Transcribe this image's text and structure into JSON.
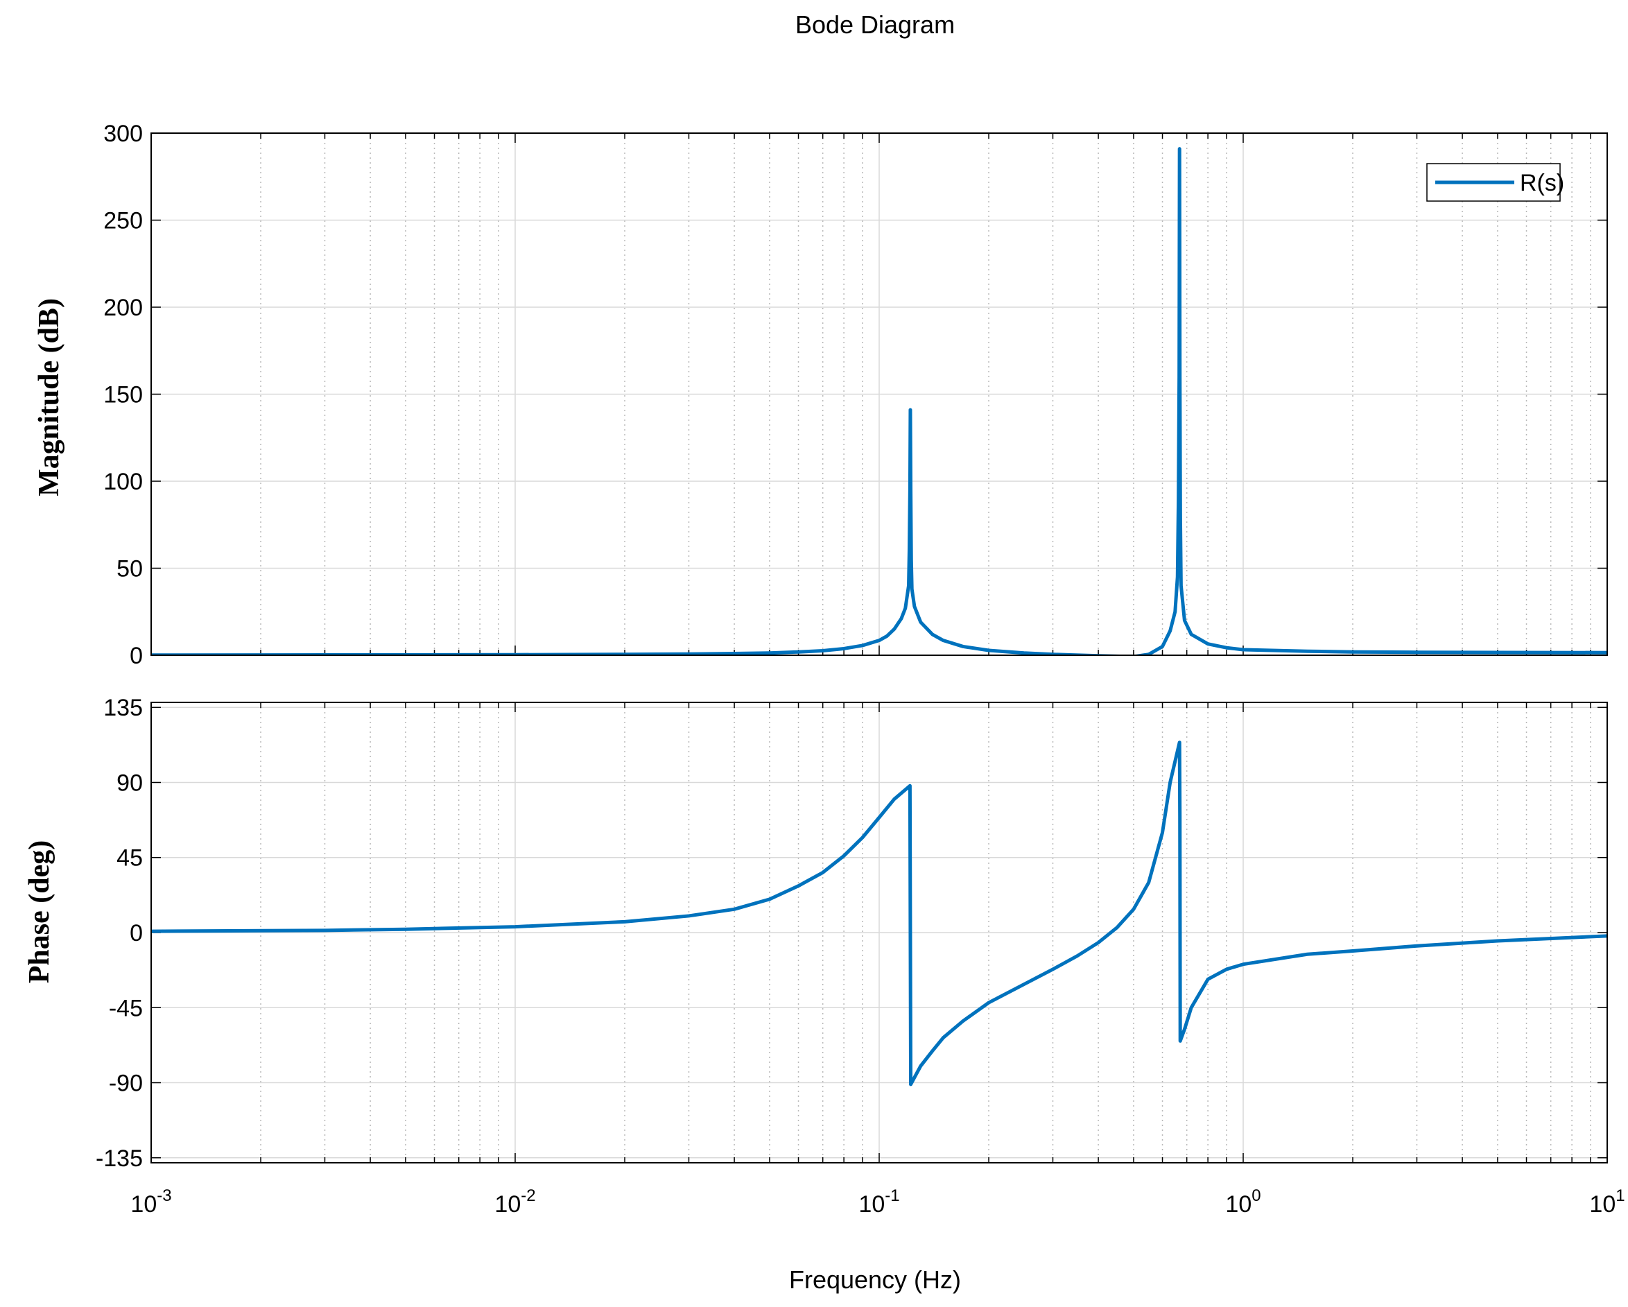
{
  "chart_data": [
    {
      "type": "line",
      "title": "Bode Diagram",
      "ylabel": "Magnitude (dB)",
      "xlabel": "",
      "xscale": "log",
      "xlim": [
        0.001,
        10
      ],
      "ylim": [
        0,
        300
      ],
      "yticks": [
        0,
        50,
        100,
        150,
        200,
        250,
        300
      ],
      "yticklabels": [
        "0",
        "50",
        "100",
        "150",
        "200",
        "250",
        "300"
      ],
      "grid": true,
      "legend": {
        "placement": "top-right",
        "entries": [
          "R(s)"
        ]
      },
      "series": [
        {
          "name": "R(s)",
          "color": "#0072BD",
          "points": [
            [
              0.001,
              0.1
            ],
            [
              0.003,
              0.2
            ],
            [
              0.01,
              0.3
            ],
            [
              0.02,
              0.5
            ],
            [
              0.03,
              0.7
            ],
            [
              0.04,
              1.0
            ],
            [
              0.05,
              1.3
            ],
            [
              0.06,
              1.9
            ],
            [
              0.07,
              2.6
            ],
            [
              0.08,
              3.8
            ],
            [
              0.09,
              5.6
            ],
            [
              0.1,
              8.5
            ],
            [
              0.105,
              11
            ],
            [
              0.11,
              15
            ],
            [
              0.115,
              21
            ],
            [
              0.118,
              27
            ],
            [
              0.1205,
              40
            ],
            [
              0.121,
              60
            ],
            [
              0.1215,
              95
            ],
            [
              0.1218,
              141
            ],
            [
              0.1221,
              95
            ],
            [
              0.1225,
              55
            ],
            [
              0.123,
              38
            ],
            [
              0.125,
              28
            ],
            [
              0.13,
              19
            ],
            [
              0.14,
              12
            ],
            [
              0.15,
              8.5
            ],
            [
              0.17,
              5.0
            ],
            [
              0.2,
              2.8
            ],
            [
              0.25,
              1.3
            ],
            [
              0.3,
              0.5
            ],
            [
              0.4,
              -0.3
            ],
            [
              0.5,
              -0.8
            ],
            [
              0.55,
              0.5
            ],
            [
              0.6,
              5
            ],
            [
              0.63,
              14
            ],
            [
              0.65,
              25
            ],
            [
              0.66,
              45
            ],
            [
              0.664,
              90
            ],
            [
              0.667,
              160
            ],
            [
              0.6685,
              291
            ],
            [
              0.67,
              160
            ],
            [
              0.672,
              80
            ],
            [
              0.675,
              40
            ],
            [
              0.69,
              20
            ],
            [
              0.72,
              12
            ],
            [
              0.8,
              6.5
            ],
            [
              0.9,
              4.3
            ],
            [
              1.0,
              3.2
            ],
            [
              1.5,
              2.3
            ],
            [
              2,
              1.9
            ],
            [
              3,
              1.7
            ],
            [
              5,
              1.6
            ],
            [
              10,
              1.5
            ]
          ]
        }
      ]
    },
    {
      "type": "line",
      "title": "",
      "ylabel": "Phase (deg)",
      "xlabel": "Frequency  (Hz)",
      "xscale": "log",
      "xlim": [
        0.001,
        10
      ],
      "ylim": [
        -138,
        138
      ],
      "xticks": [
        0.001,
        0.01,
        0.1,
        1,
        10
      ],
      "xticklabels": [
        {
          "base": "10",
          "exp": "-3"
        },
        {
          "base": "10",
          "exp": "-2"
        },
        {
          "base": "10",
          "exp": "-1"
        },
        {
          "base": "10",
          "exp": "0"
        },
        {
          "base": "10",
          "exp": "1"
        }
      ],
      "yticks": [
        -135,
        -90,
        -45,
        0,
        45,
        90,
        135
      ],
      "yticklabels": [
        "-135",
        "-90",
        "-45",
        "0",
        "45",
        "90",
        "135"
      ],
      "grid": true,
      "series": [
        {
          "name": "R(s)",
          "color": "#0072BD",
          "points": [
            [
              0.001,
              0.8
            ],
            [
              0.003,
              1.3
            ],
            [
              0.005,
              2.0
            ],
            [
              0.01,
              3.5
            ],
            [
              0.02,
              6.5
            ],
            [
              0.03,
              10
            ],
            [
              0.04,
              14
            ],
            [
              0.05,
              20
            ],
            [
              0.06,
              28
            ],
            [
              0.07,
              36
            ],
            [
              0.08,
              46
            ],
            [
              0.09,
              57
            ],
            [
              0.1,
              69
            ],
            [
              0.11,
              80
            ],
            [
              0.1215,
              88
            ],
            [
              0.1221,
              -91
            ],
            [
              0.13,
              -80
            ],
            [
              0.14,
              -71
            ],
            [
              0.15,
              -63
            ],
            [
              0.17,
              -53
            ],
            [
              0.2,
              -42
            ],
            [
              0.25,
              -31
            ],
            [
              0.3,
              -22
            ],
            [
              0.35,
              -14
            ],
            [
              0.4,
              -6
            ],
            [
              0.45,
              3
            ],
            [
              0.5,
              14
            ],
            [
              0.55,
              30
            ],
            [
              0.6,
              60
            ],
            [
              0.63,
              90
            ],
            [
              0.6685,
              114
            ],
            [
              0.67,
              70
            ],
            [
              0.6715,
              -65
            ],
            [
              0.69,
              -58
            ],
            [
              0.72,
              -45
            ],
            [
              0.8,
              -28
            ],
            [
              0.9,
              -22
            ],
            [
              1.0,
              -19
            ],
            [
              1.5,
              -13
            ],
            [
              2,
              -11
            ],
            [
              3,
              -8
            ],
            [
              5,
              -5
            ],
            [
              10,
              -2
            ]
          ]
        }
      ]
    }
  ]
}
